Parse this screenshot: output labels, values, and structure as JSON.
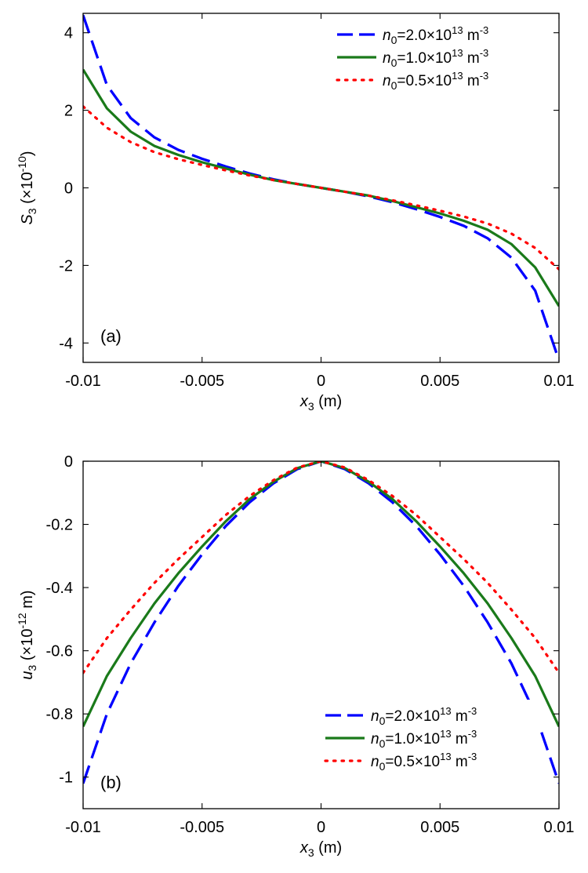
{
  "chart_data": [
    {
      "type": "line",
      "panel_label": "(a)",
      "xlabel": {
        "var": "x",
        "sub": "3",
        "unit": " (m)"
      },
      "ylabel": {
        "var": "S",
        "sub": "3",
        "mid": " (×10",
        "sup": "-10",
        "end": ")"
      },
      "xlim": [
        -0.01,
        0.01
      ],
      "ylim": [
        -4.5,
        4.5
      ],
      "xticks": [
        -0.01,
        -0.005,
        0,
        0.005,
        0.01
      ],
      "xtick_labels": [
        "-0.01",
        "-0.005",
        "0",
        "0.005",
        "0.01"
      ],
      "yticks": [
        -4,
        -2,
        0,
        2,
        4
      ],
      "ytick_labels": [
        "-4",
        "-2",
        "0",
        "2",
        "4"
      ],
      "legend_position": "top-right",
      "x": [
        -0.01,
        -0.009,
        -0.008,
        -0.007,
        -0.006,
        -0.005,
        -0.004,
        -0.003,
        -0.002,
        -0.001,
        0,
        0.001,
        0.002,
        0.003,
        0.004,
        0.005,
        0.006,
        0.007,
        0.008,
        0.009,
        0.01
      ],
      "series": [
        {
          "name": {
            "var": "n",
            "sub": "0",
            "mid": "=2.0×10",
            "sup": "13",
            "end": " m",
            "sup2": "-3"
          },
          "color": "#0000ff",
          "style": "dashed",
          "values": [
            4.45,
            2.65,
            1.8,
            1.3,
            0.98,
            0.75,
            0.55,
            0.37,
            0.22,
            0.1,
            0,
            -0.1,
            -0.22,
            -0.37,
            -0.55,
            -0.75,
            -0.98,
            -1.3,
            -1.8,
            -2.65,
            -4.45
          ]
        },
        {
          "name": {
            "var": "n",
            "sub": "0",
            "mid": "=1.0×10",
            "sup": "13",
            "end": " m",
            "sup2": "-3"
          },
          "color": "#1a7a1a",
          "style": "solid",
          "values": [
            3.05,
            2.05,
            1.45,
            1.08,
            0.85,
            0.66,
            0.5,
            0.34,
            0.2,
            0.1,
            0,
            -0.1,
            -0.2,
            -0.34,
            -0.5,
            -0.66,
            -0.85,
            -1.08,
            -1.45,
            -2.05,
            -3.05
          ]
        },
        {
          "name": {
            "var": "n",
            "sub": "0",
            "mid": "=0.5×10",
            "sup": "13",
            "end": " m",
            "sup2": "-3"
          },
          "color": "#ff0000",
          "style": "dotted",
          "values": [
            2.1,
            1.55,
            1.18,
            0.92,
            0.74,
            0.59,
            0.45,
            0.32,
            0.2,
            0.1,
            0,
            -0.1,
            -0.2,
            -0.32,
            -0.45,
            -0.59,
            -0.74,
            -0.92,
            -1.18,
            -1.55,
            -2.1
          ]
        }
      ]
    },
    {
      "type": "line",
      "panel_label": "(b)",
      "xlabel": {
        "var": "x",
        "sub": "3",
        "unit": " (m)"
      },
      "ylabel": {
        "var": "u",
        "sub": "3",
        "mid": " (×10",
        "sup": "-12",
        "end": " m)"
      },
      "xlim": [
        -0.01,
        0.01
      ],
      "ylim": [
        -1.1,
        0
      ],
      "xticks": [
        -0.01,
        -0.005,
        0,
        0.005,
        0.01
      ],
      "xtick_labels": [
        "-0.01",
        "-0.005",
        "0",
        "0.005",
        "0.01"
      ],
      "yticks": [
        -1,
        -0.8,
        -0.6,
        -0.4,
        -0.2,
        0
      ],
      "ytick_labels": [
        "-1",
        "-0.8",
        "-0.6",
        "-0.4",
        "-0.2",
        "0"
      ],
      "legend_position": "bottom-right",
      "x": [
        -0.01,
        -0.009,
        -0.008,
        -0.007,
        -0.006,
        -0.005,
        -0.004,
        -0.003,
        -0.002,
        -0.001,
        0,
        0.001,
        0.002,
        0.003,
        0.004,
        0.005,
        0.006,
        0.007,
        0.008,
        0.009,
        0.01
      ],
      "series": [
        {
          "name": {
            "var": "n",
            "sub": "0",
            "mid": "=2.0×10",
            "sup": "13",
            "end": " m",
            "sup2": "-3"
          },
          "color": "#0000ff",
          "style": "dashed",
          "values": [
            -1.02,
            -0.8,
            -0.64,
            -0.51,
            -0.395,
            -0.295,
            -0.205,
            -0.13,
            -0.07,
            -0.025,
            0,
            -0.025,
            -0.07,
            -0.13,
            -0.205,
            -0.295,
            -0.395,
            -0.51,
            -0.64,
            -0.8,
            -1.02
          ]
        },
        {
          "name": {
            "var": "n",
            "sub": "0",
            "mid": "=1.0×10",
            "sup": "13",
            "end": " m",
            "sup2": "-3"
          },
          "color": "#1a7a1a",
          "style": "solid",
          "values": [
            -0.84,
            -0.68,
            -0.56,
            -0.45,
            -0.355,
            -0.27,
            -0.19,
            -0.12,
            -0.065,
            -0.022,
            0,
            -0.022,
            -0.065,
            -0.12,
            -0.19,
            -0.27,
            -0.355,
            -0.45,
            -0.56,
            -0.68,
            -0.84
          ]
        },
        {
          "name": {
            "var": "n",
            "sub": "0",
            "mid": "=0.5×10",
            "sup": "13",
            "end": " m",
            "sup2": "-3"
          },
          "color": "#ff0000",
          "style": "dotted",
          "values": [
            -0.67,
            -0.56,
            -0.47,
            -0.385,
            -0.31,
            -0.24,
            -0.17,
            -0.11,
            -0.06,
            -0.02,
            0,
            -0.02,
            -0.06,
            -0.11,
            -0.17,
            -0.24,
            -0.31,
            -0.385,
            -0.47,
            -0.56,
            -0.67
          ]
        }
      ]
    }
  ]
}
